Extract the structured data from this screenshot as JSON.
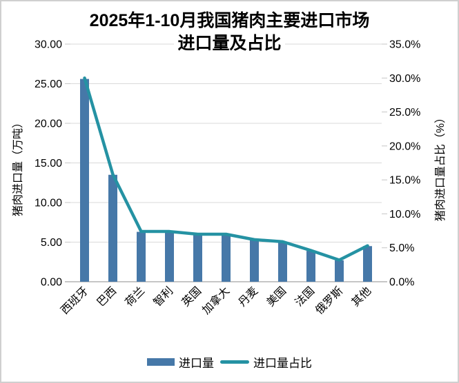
{
  "title": {
    "line1": "2025年1-10月我国猪肉主要进口市场",
    "line2": "进口量及占比"
  },
  "axes": {
    "left_title": "猪肉进口量（万吨）",
    "right_title": "猪肉进口量占比（%）",
    "left_ticks": [
      "30.00",
      "25.00",
      "20.00",
      "15.00",
      "10.00",
      "5.00",
      "0.00"
    ],
    "right_ticks": [
      "35.0%",
      "30.0%",
      "25.0%",
      "20.0%",
      "15.0%",
      "10.0%",
      "5.0%",
      "0.0%"
    ]
  },
  "legend": [
    {
      "label": "进口量",
      "swatch": "bar"
    },
    {
      "label": "进口量占比",
      "swatch": "line"
    }
  ],
  "colors": {
    "bar": "#4678A8",
    "line": "#2592A3",
    "grid": "#D9D9D9",
    "axis_line": "#C6C6C6",
    "text": "#000000"
  },
  "chart_data": {
    "type": "bar",
    "title": "2025年1-10月我国猪肉主要进口市场进口量及占比",
    "categories": [
      "西班牙",
      "巴西",
      "荷兰",
      "智利",
      "英国",
      "加拿大",
      "丹麦",
      "美国",
      "法国",
      "俄罗斯",
      "其他"
    ],
    "series": [
      {
        "name": "进口量",
        "type": "bar",
        "axis": "left",
        "unit": "万吨",
        "values": [
          25.6,
          13.5,
          6.3,
          6.3,
          5.9,
          5.9,
          5.3,
          5.0,
          3.9,
          2.7,
          4.5
        ]
      },
      {
        "name": "进口量占比",
        "type": "line",
        "axis": "right",
        "unit": "%",
        "values": [
          30.0,
          15.8,
          7.4,
          7.4,
          7.0,
          7.0,
          6.2,
          5.9,
          4.6,
          3.2,
          5.3
        ]
      }
    ],
    "left_axis": {
      "label": "猪肉进口量（万吨）",
      "min": 0,
      "max": 30,
      "step": 5
    },
    "right_axis": {
      "label": "猪肉进口量占比（%）",
      "min": 0,
      "max": 35,
      "step": 5
    },
    "grid": true,
    "legend_position": "bottom",
    "x_label_rotation_deg": 45
  }
}
